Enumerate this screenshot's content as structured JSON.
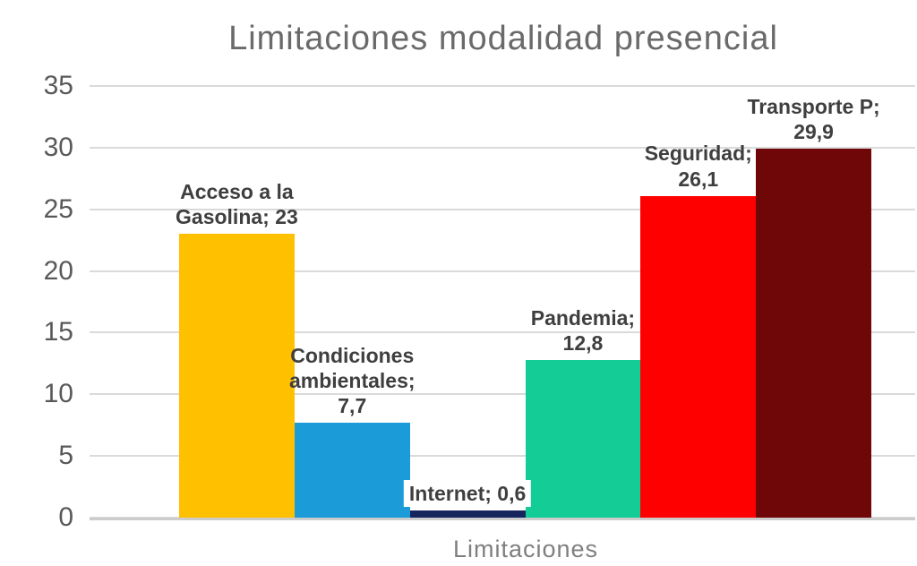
{
  "chart_data": {
    "type": "bar",
    "title": "Limitaciones modalidad presencial",
    "xlabel": "Limitaciones",
    "ylabel": "",
    "ylim": [
      0,
      35
    ],
    "yticks": [
      0,
      5,
      10,
      15,
      20,
      25,
      30,
      35
    ],
    "grid": true,
    "legend": "none",
    "categories": [
      "Acceso a la Gasolina",
      "Condiciones ambientales",
      "Internet",
      "Pandemia",
      "Seguridad",
      "Transporte P"
    ],
    "values": [
      23,
      7.7,
      0.6,
      12.8,
      26.1,
      29.9
    ],
    "bar_colors": [
      "#FFC000",
      "#1B9BD8",
      "#17255F",
      "#13CC96",
      "#FF0000",
      "#6F0608"
    ],
    "point_labels": [
      {
        "lines": [
          "Acceso a la",
          "Gasolina; 23"
        ],
        "background": "none"
      },
      {
        "lines": [
          "Condiciones",
          "ambientales;",
          "7,7"
        ],
        "background": "none"
      },
      {
        "lines": [
          "Internet; 0,6"
        ],
        "background": "#FFFFFF"
      },
      {
        "lines": [
          "Pandemia;",
          "12,8"
        ],
        "background": "none"
      },
      {
        "lines": [
          "Seguridad;",
          "26,1"
        ],
        "background": "none"
      },
      {
        "lines": [
          "Transporte P;",
          "29,9"
        ],
        "background": "none"
      }
    ],
    "colors": {
      "title": "#6A6A6A",
      "data_label": "#3F3F3F",
      "gridline": "#DADADA",
      "axis_tick": "#595959",
      "x_axis_label": "#7F7F7F",
      "background": "#FFFFFF"
    }
  }
}
